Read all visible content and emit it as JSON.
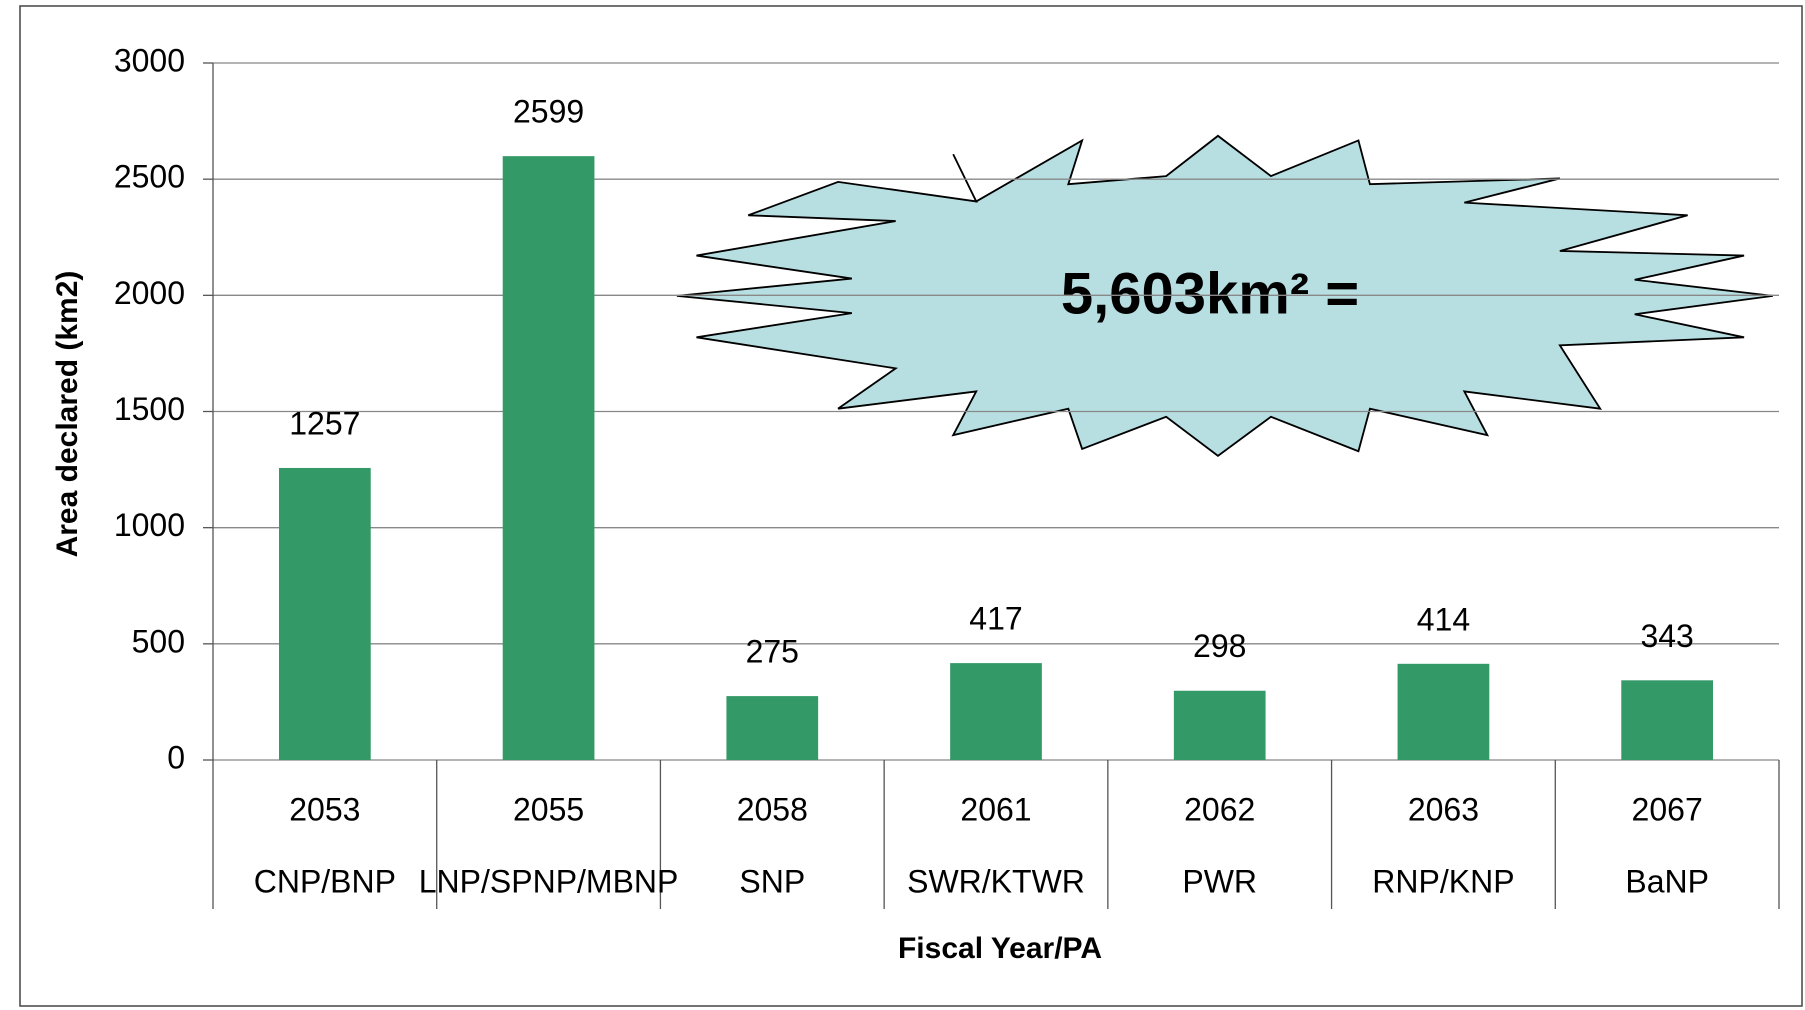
{
  "chart_data": {
    "type": "bar",
    "categories": [
      "2053",
      "2055",
      "2058",
      "2061",
      "2062",
      "2063",
      "2067"
    ],
    "sublabels": [
      "CNP/BNP",
      "LNP/SPNP/MBNP",
      "SNP",
      "SWR/KTWR",
      "PWR",
      "RNP/KNP",
      "BaNP"
    ],
    "values": [
      1257,
      2599,
      275,
      417,
      298,
      414,
      343
    ],
    "color": "#339966",
    "x_label": "Fiscal Year/PA",
    "y_label": "Area declared (km2)",
    "annotation": "5,603km² =",
    "ylim": [
      0,
      3000
    ],
    "yticks": [
      0,
      500,
      1000,
      1500,
      2000,
      2500,
      3000
    ],
    "grid": true
  }
}
